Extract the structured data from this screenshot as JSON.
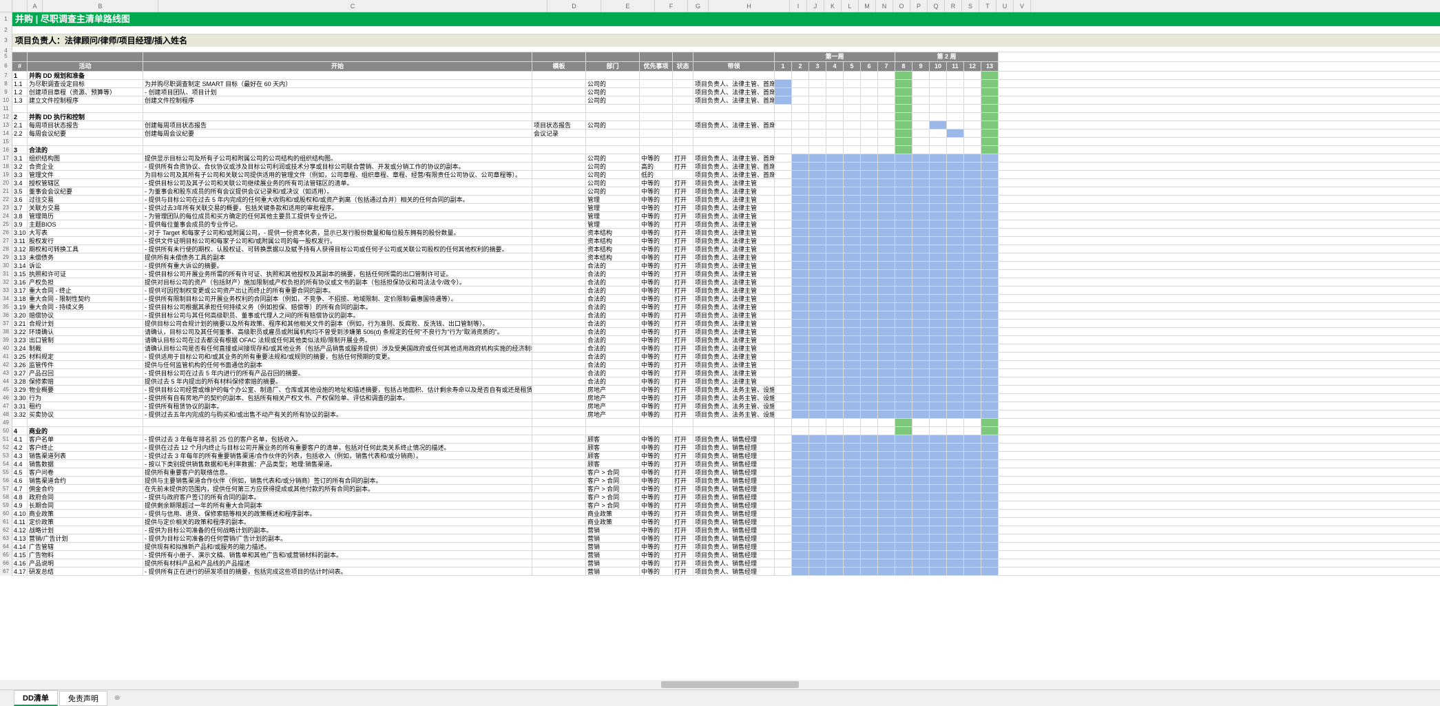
{
  "title": "并购 | 尽职调查主清单路线图",
  "subtitle": "项目负责人：法律顾问/律师/项目经理/插入姓名",
  "colLetters": [
    "A",
    "B",
    "C",
    "D",
    "E",
    "F",
    "G",
    "H",
    "I",
    "J",
    "K",
    "L",
    "M",
    "N",
    "O",
    "P",
    "Q",
    "R",
    "S",
    "T",
    "U",
    "V"
  ],
  "headers": {
    "num": "#",
    "act": "活动",
    "start": "开始",
    "tpl": "模板",
    "dept": "部门",
    "pri": "优先事项",
    "stat": "状态",
    "lead": "带领",
    "wk1": "第一周",
    "wk2": "第 2 周"
  },
  "weekNums": [
    1,
    2,
    3,
    4,
    5,
    6,
    7,
    8,
    9,
    10,
    11,
    12,
    13
  ],
  "tabs": {
    "active": "DD清单",
    "other": "免责声明",
    "add": "⊕"
  },
  "colors": {
    "green": "#7ec87e",
    "blue": "#9bb8e8",
    "darkgreen": "#4ba84b",
    "titlebar": "#00a84f",
    "subtitlebar": "#e8e8d8",
    "header": "#888888"
  },
  "rows": [
    {
      "r": 7,
      "n": "1",
      "act": "并购 DD 规划和准备",
      "sec": true
    },
    {
      "r": 8,
      "n": "1.1",
      "act": "为尽职调查设定目标",
      "start": "为并购尽职调查制定 SMART 目标（最好在 60 天内）",
      "dept": "公司的",
      "lead": "项目负责人、法律主管、首席执行官",
      "g": [
        [
          0,
          1,
          "b"
        ]
      ]
    },
    {
      "r": 9,
      "n": "1.2",
      "act": "创建项目章程（资源、预算等）",
      "start": "- 创建项目团队、项目计划",
      "dept": "公司的",
      "lead": "项目负责人、法律主管、首席执行官",
      "g": [
        [
          0,
          1,
          "b"
        ]
      ]
    },
    {
      "r": 10,
      "n": "1.3",
      "act": "建立文件控制程序",
      "start": "创建文件控制程序",
      "dept": "公司的",
      "lead": "项目负责人、法律主管、首席执行官",
      "g": [
        [
          0,
          1,
          "b"
        ]
      ]
    },
    {
      "r": 11
    },
    {
      "r": 12,
      "n": "2",
      "act": "并购 DD 执行和控制",
      "sec": true
    },
    {
      "r": 13,
      "n": "2.1",
      "act": "每周项目状态报告",
      "start": "创建每周项目状态报告",
      "tpl": "项目状态报告",
      "dept": "公司的",
      "lead": "项目负责人、法律主管、首席执行官",
      "g": [
        [
          9,
          1,
          "b"
        ]
      ]
    },
    {
      "r": 14,
      "n": "2.2",
      "act": "每周会议纪要",
      "start": "创建每周会议纪要",
      "tpl": "会议记录",
      "g": [
        [
          10,
          1,
          "b"
        ]
      ]
    },
    {
      "r": 15
    },
    {
      "r": 16,
      "n": "3",
      "act": "合法的",
      "sec": true
    },
    {
      "r": 17,
      "n": "3.1",
      "act": "组织结构图",
      "start": "提供显示目标公司及所有子公司和附属公司的公司结构的组织结构图。",
      "dept": "公司的",
      "pri": "中等的",
      "stat": "打开",
      "lead": "项目负责人、法律主管、首席执行官",
      "g": [
        [
          1,
          12,
          "b"
        ]
      ]
    },
    {
      "r": 18,
      "n": "3.2",
      "act": "合资企业",
      "start": "- 提供所有合资协议、合伙协议或涉及目标公司利润或技术分享或目标公司联合营销、开发或分销工作的协议的副本。",
      "dept": "公司的",
      "pri": "高的",
      "stat": "打开",
      "lead": "项目负责人、法律主管、首席执行官",
      "g": [
        [
          1,
          12,
          "b"
        ]
      ]
    },
    {
      "r": 19,
      "n": "3.3",
      "act": "管理文件",
      "start": "为目标公司及其所有子公司和关联公司提供适用的管理文件（例如，公司章程、组织章程、章程、经营/有限责任公司协议、公司章程等）。",
      "dept": "公司的",
      "pri": "低的",
      "lead": "项目负责人、法律主管、首席执行官",
      "g": [
        [
          1,
          12,
          "b"
        ]
      ]
    },
    {
      "r": 20,
      "n": "3.4",
      "act": "授权管辖区",
      "start": "- 提供目标公司及其子公司和关联公司继续展业务的所有司法管辖区的清单。",
      "dept": "公司的",
      "pri": "中等的",
      "stat": "打开",
      "lead": "项目负责人、法律主管",
      "g": [
        [
          1,
          12,
          "b"
        ]
      ]
    },
    {
      "r": 21,
      "n": "3.5",
      "act": "董事会会议纪要",
      "start": "- 为董事会和股东成员的所有会议提供会议记录和/或决议（如适用）。",
      "dept": "公司的",
      "pri": "中等的",
      "stat": "打开",
      "lead": "项目负责人、法律主管",
      "g": [
        [
          1,
          12,
          "b"
        ]
      ]
    },
    {
      "r": 22,
      "n": "3.6",
      "act": "过往交易",
      "start": "- 提供与目标公司在过去 5 年内完成的任何重大收购和/或股权和/或资产剥离（包括通过合并）相关的任何合同的副本。",
      "dept": "管理",
      "pri": "中等的",
      "stat": "打开",
      "lead": "项目负责人、法律主管",
      "g": [
        [
          1,
          12,
          "b"
        ]
      ]
    },
    {
      "r": 23,
      "n": "3.7",
      "act": "关联方交易",
      "start": "- 提供过去3年所有关联交易的概要，包括关键条款和适用的审批程序。",
      "dept": "管理",
      "pri": "中等的",
      "stat": "打开",
      "lead": "项目负责人、法律主管",
      "g": [
        [
          1,
          12,
          "b"
        ]
      ]
    },
    {
      "r": 24,
      "n": "3.8",
      "act": "管理简历",
      "start": "- 为管理团队的每位成员和买方确定的任何其他主要员工提供专业传记。",
      "dept": "管理",
      "pri": "中等的",
      "stat": "打开",
      "lead": "项目负责人、法律主管",
      "g": [
        [
          1,
          12,
          "b"
        ]
      ]
    },
    {
      "r": 25,
      "n": "3.9",
      "act": "主题BIOS",
      "start": "- 提供每位董事会成员的专业传记。",
      "dept": "管理",
      "pri": "中等的",
      "stat": "打开",
      "lead": "项目负责人、法律主管",
      "g": [
        [
          1,
          12,
          "b"
        ]
      ]
    },
    {
      "r": 26,
      "n": "3.10",
      "act": "大写表",
      "start": "- 对于 Target 和每家子公司和/或附属公司，- 提供一份资本化表，显示已发行股份数量和每位股东拥有的股份数量。",
      "dept": "资本结构",
      "pri": "中等的",
      "stat": "打开",
      "lead": "项目负责人、法律主管",
      "g": [
        [
          1,
          12,
          "b"
        ]
      ]
    },
    {
      "r": 27,
      "n": "3.11",
      "act": "股权发行",
      "start": "- 提供文件证明目标公司和每家子公司和/或附属公司的每一股权发行。",
      "dept": "资本结构",
      "pri": "中等的",
      "stat": "打开",
      "lead": "项目负责人、法律主管",
      "g": [
        [
          1,
          12,
          "b"
        ]
      ]
    },
    {
      "r": 28,
      "n": "3.12",
      "act": "期权和可转换工具",
      "start": "- 提供所有未行使的期权、认股权证、可转换票据以及赋予持有人获得目标公司或任何子公司或关联公司股权的任何其他权利的摘要。",
      "dept": "资本结构",
      "pri": "中等的",
      "stat": "打开",
      "lead": "项目负责人、法律主管",
      "g": [
        [
          1,
          12,
          "b"
        ]
      ]
    },
    {
      "r": 29,
      "n": "3.13",
      "act": "未偿债务",
      "start": "提供所有未偿债务工具的副本",
      "dept": "资本结构",
      "pri": "中等的",
      "stat": "打开",
      "lead": "项目负责人、法律主管",
      "g": [
        [
          1,
          12,
          "b"
        ]
      ]
    },
    {
      "r": 30,
      "n": "3.14",
      "act": "诉讼",
      "start": "- 提供所有重大诉讼的摘要。",
      "dept": "合法的",
      "pri": "中等的",
      "stat": "打开",
      "lead": "项目负责人、法律主管",
      "g": [
        [
          1,
          12,
          "b"
        ]
      ]
    },
    {
      "r": 31,
      "n": "3.15",
      "act": "执照和许可证",
      "start": "- 提供目标公司开展业务所需的所有许可证、执照和其他授权及其副本的摘要，包括任何所需的出口管制许可证。",
      "dept": "合法的",
      "pri": "中等的",
      "stat": "打开",
      "lead": "项目负责人、法律主管",
      "g": [
        [
          1,
          12,
          "b"
        ]
      ]
    },
    {
      "r": 32,
      "n": "3.16",
      "act": "产权负担",
      "start": "提供对目标公司的资产（包括财产）施加限制或产权负担的所有协议或文书的副本（包括担保协议和司法法令/政令）。",
      "dept": "合法的",
      "pri": "中等的",
      "stat": "打开",
      "lead": "项目负责人、法律主管",
      "g": [
        [
          1,
          12,
          "b"
        ]
      ]
    },
    {
      "r": 33,
      "n": "3.17",
      "act": "重大合同 - 终止",
      "start": "- 提供可因控制权变更或公司资产出让而终止的所有重要合同的副本。",
      "dept": "合法的",
      "pri": "中等的",
      "stat": "打开",
      "lead": "项目负责人、法律主管",
      "g": [
        [
          1,
          12,
          "b"
        ]
      ]
    },
    {
      "r": 34,
      "n": "3.18",
      "act": "重大合同 - 限制性契约",
      "start": "- 提供所有限制目标公司开展业务权利的合同副本（例如，不竞争、不招揽、地域限制、定价限制/最惠国待遇等）。",
      "dept": "合法的",
      "pri": "中等的",
      "stat": "打开",
      "lead": "项目负责人、法律主管",
      "g": [
        [
          1,
          12,
          "b"
        ]
      ]
    },
    {
      "r": 35,
      "n": "3.19",
      "act": "重大合同 - 持续义务",
      "start": "- 提供目标公司根据其承担任何持续义务（例如担保、赔偿等）的所有合同的副本。",
      "dept": "合法的",
      "pri": "中等的",
      "stat": "打开",
      "lead": "项目负责人、法律主管",
      "g": [
        [
          1,
          12,
          "b"
        ]
      ]
    },
    {
      "r": 36,
      "n": "3.20",
      "act": "赔偿协议",
      "start": "- 提供目标公司与其任何高级职员、董事或代理人之间的所有赔偿协议的副本。",
      "dept": "合法的",
      "pri": "中等的",
      "stat": "打开",
      "lead": "项目负责人、法律主管",
      "g": [
        [
          1,
          12,
          "b"
        ]
      ]
    },
    {
      "r": 37,
      "n": "3.21",
      "act": "合规计划",
      "start": "提供目标公司合规计划的摘要以及所有政策、程序和其他相关文件的副本（例如，行为准则、反腐败、反洗钱、出口管制等）。",
      "dept": "合法的",
      "pri": "中等的",
      "stat": "打开",
      "lead": "项目负责人、法律主管",
      "g": [
        [
          1,
          12,
          "b"
        ]
      ]
    },
    {
      "r": 38,
      "n": "3.22",
      "act": "环境确认",
      "start": "请确认，目标公司及其任何董事、高级职员或雇员或附属机构均不曾受到涉嫌第 506(d) 条规定的任何\"不良行为\"行为\"取消资质的\"。",
      "dept": "合法的",
      "pri": "中等的",
      "stat": "打开",
      "lead": "项目负责人、法律主管",
      "g": [
        [
          1,
          12,
          "b"
        ]
      ]
    },
    {
      "r": 39,
      "n": "3.23",
      "act": "出口管制",
      "start": "请确认目标公司在过去都没有根据 OFAC 法规或任何其他类似法规/限制开展业务。",
      "dept": "合法的",
      "pri": "中等的",
      "stat": "打开",
      "lead": "项目负责人、法律主管",
      "g": [
        [
          1,
          12,
          "b"
        ]
      ]
    },
    {
      "r": 40,
      "n": "3.24",
      "act": "制裁",
      "start": "请确认目标公司是否有任何直接或间接现存和/或其他业务（包括产品销售或服务提供）涉及受美国政府或任何其他适用政府机构实施的经济制裁运帐或制裁的任何国家或个人。",
      "dept": "合法的",
      "pri": "中等的",
      "stat": "打开",
      "lead": "项目负责人、法律主管",
      "g": [
        [
          1,
          12,
          "b"
        ]
      ]
    },
    {
      "r": 41,
      "n": "3.25",
      "act": "材料规定",
      "start": "- 提供适用于目标公司和/或其业务的所有重要法规和/或规则的摘要，包括任何预期的变更。",
      "dept": "合法的",
      "pri": "中等的",
      "stat": "打开",
      "lead": "项目负责人、法律主管",
      "g": [
        [
          1,
          12,
          "b"
        ]
      ]
    },
    {
      "r": 42,
      "n": "3.26",
      "act": "监管传件",
      "start": "提供与任何监管机构的任何书面通信的副本",
      "dept": "合法的",
      "pri": "中等的",
      "stat": "打开",
      "lead": "项目负责人、法律主管",
      "g": [
        [
          1,
          12,
          "b"
        ]
      ]
    },
    {
      "r": 43,
      "n": "3.27",
      "act": "产品召回",
      "start": "- 提供目标公司在过去 5 年内进行的所有产品召回的摘要。",
      "dept": "合法的",
      "pri": "中等的",
      "stat": "打开",
      "lead": "项目负责人、法律主管",
      "g": [
        [
          1,
          12,
          "b"
        ]
      ]
    },
    {
      "r": 44,
      "n": "3.28",
      "act": "保修索赔",
      "start": "提供过去 5 年内提出的所有材料保修索赔的摘要。",
      "dept": "合法的",
      "pri": "中等的",
      "stat": "打开",
      "lead": "项目负责人、法律主管",
      "g": [
        [
          1,
          12,
          "b"
        ]
      ]
    },
    {
      "r": 45,
      "n": "3.29",
      "act": "物业概要",
      "start": "- 提供目标公司经营或维护的每个办公室、制造厂、仓库或其他设施的地址和描述摘要，包括占地面积、估计剩余寿命以及是否自有或还是租赁。",
      "dept": "房地产",
      "pri": "中等的",
      "stat": "打开",
      "lead": "项目负责人、法务主管、设施经理",
      "g": [
        [
          1,
          12,
          "b"
        ]
      ]
    },
    {
      "r": 46,
      "n": "3.30",
      "act": "行为",
      "start": "- 提供所有自有房地产的契约的副本、包括所有相关产权文书、产权保险单、评估和调查的副本。",
      "dept": "房地产",
      "pri": "中等的",
      "stat": "打开",
      "lead": "项目负责人、法务主管、设施经理",
      "g": [
        [
          1,
          12,
          "b"
        ]
      ]
    },
    {
      "r": 47,
      "n": "3.31",
      "act": "租约",
      "start": "- 提供所有租赁协议的副本。",
      "dept": "房地产",
      "pri": "中等的",
      "stat": "打开",
      "lead": "项目负责人、法务主管、设施经理",
      "g": [
        [
          1,
          12,
          "b"
        ]
      ]
    },
    {
      "r": 48,
      "n": "3.32",
      "act": "买卖协议",
      "start": "- 提供过去五年内完成的与购买和/或出售不动产有关的所有协议的副本。",
      "dept": "房地产",
      "pri": "中等的",
      "stat": "打开",
      "lead": "项目负责人、法务主管、设施经理",
      "g": [
        [
          1,
          12,
          "b"
        ]
      ]
    },
    {
      "r": 49
    },
    {
      "r": 50,
      "n": "4",
      "act": "商业的",
      "sec": true
    },
    {
      "r": 51,
      "n": "4.1",
      "act": "客户名单",
      "start": "- 提供过去 3 年每年排名前 25 位的客户名单，包括收入。",
      "dept": "顾客",
      "pri": "中等的",
      "stat": "打开",
      "lead": "项目负责人、销售经理",
      "g": [
        [
          1,
          12,
          "b"
        ]
      ]
    },
    {
      "r": 52,
      "n": "4.2",
      "act": "客户终止",
      "start": "- 提供在过去 12 个月内终止与目标公司开展业务的所有重要客户的清单，包括对任何此类关系终止情况的描述。",
      "dept": "顾客",
      "pri": "中等的",
      "stat": "打开",
      "lead": "项目负责人、销售经理",
      "g": [
        [
          1,
          12,
          "b"
        ]
      ]
    },
    {
      "r": 53,
      "n": "4.3",
      "act": "销售渠道列表",
      "start": "- 提供过去 3 年每年的所有重要销售渠道/合作伙伴的列表，包括收入（例如，销售代表和/或分销商）。",
      "dept": "顾客",
      "pri": "中等的",
      "stat": "打开",
      "lead": "项目负责人、销售经理",
      "g": [
        [
          1,
          12,
          "b"
        ]
      ]
    },
    {
      "r": 54,
      "n": "4.4",
      "act": "销售数据",
      "start": "- 按以下类别提供销售数据和毛利率数据：产品类型；地理:销售渠道。",
      "dept": "顾客",
      "pri": "中等的",
      "stat": "打开",
      "lead": "项目负责人、销售经理",
      "g": [
        [
          1,
          12,
          "b"
        ]
      ]
    },
    {
      "r": 55,
      "n": "4.5",
      "act": "客户问卷",
      "start": "提供所有重要客户的联络信息。",
      "dept": "客户 > 合同",
      "pri": "中等的",
      "stat": "打开",
      "lead": "项目负责人、销售经理",
      "g": [
        [
          1,
          12,
          "b"
        ]
      ]
    },
    {
      "r": 56,
      "n": "4.6",
      "act": "销售渠道合约",
      "start": "提供与主要销售渠道合作伙伴（例如，销售代表和/或分销商）签订的所有合同的副本。",
      "dept": "客户 > 合同",
      "pri": "中等的",
      "stat": "打开",
      "lead": "项目负责人、销售经理",
      "g": [
        [
          1,
          12,
          "b"
        ]
      ]
    },
    {
      "r": 57,
      "n": "4.7",
      "act": "佣金合约",
      "start": "在先前未提供的范围内，提供任何第三方应获得提成或其他付款的所有合同的副本。",
      "dept": "客户 > 合同",
      "pri": "中等的",
      "stat": "打开",
      "lead": "项目负责人、销售经理",
      "g": [
        [
          1,
          12,
          "b"
        ]
      ]
    },
    {
      "r": 58,
      "n": "4.8",
      "act": "政府合同",
      "start": "- 提供与政府客户签订的所有合同的副本。",
      "dept": "客户 > 合同",
      "pri": "中等的",
      "stat": "打开",
      "lead": "项目负责人、销售经理",
      "g": [
        [
          1,
          12,
          "b"
        ]
      ]
    },
    {
      "r": 59,
      "n": "4.9",
      "act": "长期合同",
      "start": "提供剩余期限超过一年的所有重大合同副本",
      "dept": "客户 > 合同",
      "pri": "中等的",
      "stat": "打开",
      "lead": "项目负责人、销售经理",
      "g": [
        [
          1,
          12,
          "b"
        ]
      ]
    },
    {
      "r": 60,
      "n": "4.10",
      "act": "商业政策",
      "start": "- 提供与信用、退货、保修索赔等相关的政策概述和程序副本。",
      "dept": "商业政策",
      "pri": "中等的",
      "stat": "打开",
      "lead": "项目负责人、销售经理",
      "g": [
        [
          1,
          12,
          "b"
        ]
      ]
    },
    {
      "r": 61,
      "n": "4.11",
      "act": "定价政策",
      "start": "提供与定价相关的政策和程序的副本。",
      "dept": "商业政策",
      "pri": "中等的",
      "stat": "打开",
      "lead": "项目负责人、销售经理",
      "g": [
        [
          1,
          12,
          "b"
        ]
      ]
    },
    {
      "r": 62,
      "n": "4.12",
      "act": "战略计划",
      "start": "- 提供为目标公司准备的任何战略计划的副本。",
      "dept": "营销",
      "pri": "中等的",
      "stat": "打开",
      "lead": "项目负责人、销售经理",
      "g": [
        [
          1,
          12,
          "b"
        ]
      ]
    },
    {
      "r": 63,
      "n": "4.13",
      "act": "营销/广告计划",
      "start": "- 提供为目标公司准备的任何营销/广告计划的副本。",
      "dept": "营销",
      "pri": "中等的",
      "stat": "打开",
      "lead": "项目负责人、销售经理",
      "g": [
        [
          1,
          12,
          "b"
        ]
      ]
    },
    {
      "r": 64,
      "n": "4.14",
      "act": "广告管辖",
      "start": "提供现有和拟推新产品和/或服务的能力描述。",
      "dept": "营销",
      "pri": "中等的",
      "stat": "打开",
      "lead": "项目负责人、销售经理",
      "g": [
        [
          1,
          12,
          "b"
        ]
      ]
    },
    {
      "r": 65,
      "n": "4.15",
      "act": "广告物料",
      "start": "- 提供所有小册子、演示文稿、销售单和其他广告和/或营销材料的副本。",
      "dept": "营销",
      "pri": "中等的",
      "stat": "打开",
      "lead": "项目负责人、销售经理",
      "g": [
        [
          1,
          12,
          "b"
        ]
      ]
    },
    {
      "r": 66,
      "n": "4.16",
      "act": "产品说明",
      "start": "提供所有材料产品和产品线的产品描述",
      "dept": "营销",
      "pri": "中等的",
      "stat": "打开",
      "lead": "项目负责人、销售经理",
      "g": [
        [
          1,
          12,
          "b"
        ]
      ]
    },
    {
      "r": 67,
      "n": "4.17",
      "act": "研发总结",
      "start": "- 提供所有正在进行的研发项目的摘要，包括完成这些项目的估计时间表。",
      "dept": "营销",
      "pri": "中等的",
      "stat": "打开",
      "lead": "项目负责人、销售经理",
      "g": [
        [
          1,
          12,
          "b"
        ]
      ]
    }
  ]
}
